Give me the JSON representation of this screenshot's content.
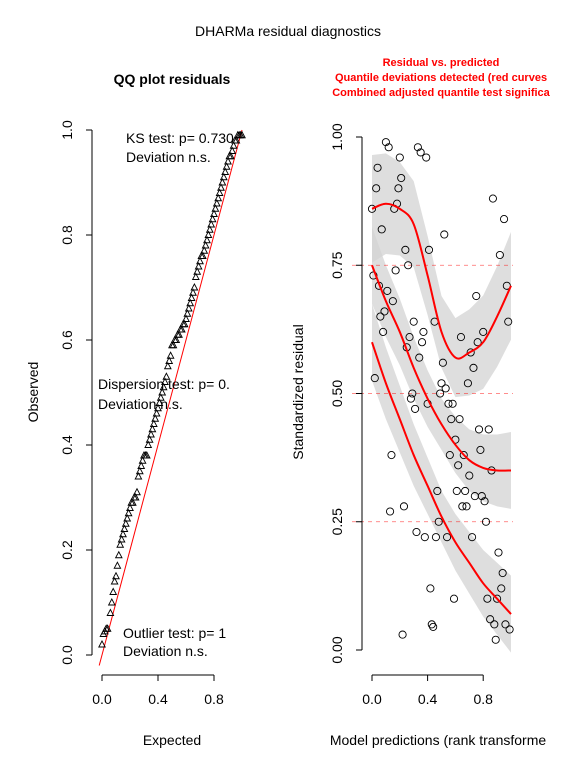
{
  "main_title": "DHARMa residual diagnostics",
  "chart_data": [
    {
      "type": "scatter",
      "title": "QQ plot residuals",
      "xlabel": "Expected",
      "ylabel": "Observed",
      "xlim": [
        0,
        1
      ],
      "ylim": [
        0,
        1
      ],
      "xticks": [
        "0.0",
        "0.4",
        "0.8"
      ],
      "yticks": [
        "0.0",
        "0.2",
        "0.4",
        "0.6",
        "0.8",
        "1.0"
      ],
      "reference_line": "y = x",
      "marker": "triangle",
      "annotations": {
        "ks_test": "KS test: p= 0.730",
        "ks_dev": "Deviation  n.s.",
        "disp_test": "Dispersion test: p= 0.",
        "disp_dev": "Deviation  n.s.",
        "outlier_test": "Outlier test: p= 1",
        "outlier_dev": "Deviation  n.s."
      },
      "points": [
        [
          0.0,
          0.02
        ],
        [
          0.01,
          0.04
        ],
        [
          0.02,
          0.045
        ],
        [
          0.03,
          0.05
        ],
        [
          0.04,
          0.05
        ],
        [
          0.06,
          0.08
        ],
        [
          0.07,
          0.1
        ],
        [
          0.08,
          0.12
        ],
        [
          0.09,
          0.14
        ],
        [
          0.1,
          0.15
        ],
        [
          0.11,
          0.17
        ],
        [
          0.12,
          0.19
        ],
        [
          0.13,
          0.21
        ],
        [
          0.14,
          0.22
        ],
        [
          0.15,
          0.23
        ],
        [
          0.16,
          0.24
        ],
        [
          0.17,
          0.25
        ],
        [
          0.18,
          0.26
        ],
        [
          0.19,
          0.27
        ],
        [
          0.2,
          0.28
        ],
        [
          0.21,
          0.29
        ],
        [
          0.22,
          0.29
        ],
        [
          0.23,
          0.3
        ],
        [
          0.24,
          0.3
        ],
        [
          0.25,
          0.31
        ],
        [
          0.26,
          0.34
        ],
        [
          0.27,
          0.35
        ],
        [
          0.28,
          0.36
        ],
        [
          0.29,
          0.37
        ],
        [
          0.3,
          0.38
        ],
        [
          0.31,
          0.38
        ],
        [
          0.32,
          0.38
        ],
        [
          0.33,
          0.4
        ],
        [
          0.34,
          0.41
        ],
        [
          0.35,
          0.42
        ],
        [
          0.36,
          0.43
        ],
        [
          0.37,
          0.44
        ],
        [
          0.38,
          0.45
        ],
        [
          0.39,
          0.46
        ],
        [
          0.4,
          0.47
        ],
        [
          0.41,
          0.48
        ],
        [
          0.42,
          0.49
        ],
        [
          0.43,
          0.5
        ],
        [
          0.44,
          0.51
        ],
        [
          0.45,
          0.52
        ],
        [
          0.46,
          0.53
        ],
        [
          0.47,
          0.55
        ],
        [
          0.48,
          0.56
        ],
        [
          0.49,
          0.57
        ],
        [
          0.5,
          0.59
        ],
        [
          0.51,
          0.59
        ],
        [
          0.52,
          0.6
        ],
        [
          0.53,
          0.6
        ],
        [
          0.54,
          0.61
        ],
        [
          0.55,
          0.61
        ],
        [
          0.56,
          0.62
        ],
        [
          0.57,
          0.62
        ],
        [
          0.58,
          0.63
        ],
        [
          0.59,
          0.63
        ],
        [
          0.6,
          0.64
        ],
        [
          0.61,
          0.65
        ],
        [
          0.62,
          0.66
        ],
        [
          0.63,
          0.67
        ],
        [
          0.64,
          0.68
        ],
        [
          0.65,
          0.69
        ],
        [
          0.66,
          0.7
        ],
        [
          0.67,
          0.72
        ],
        [
          0.68,
          0.73
        ],
        [
          0.69,
          0.74
        ],
        [
          0.7,
          0.75
        ],
        [
          0.71,
          0.76
        ],
        [
          0.72,
          0.76
        ],
        [
          0.73,
          0.77
        ],
        [
          0.74,
          0.78
        ],
        [
          0.75,
          0.79
        ],
        [
          0.76,
          0.8
        ],
        [
          0.77,
          0.81
        ],
        [
          0.78,
          0.82
        ],
        [
          0.79,
          0.83
        ],
        [
          0.8,
          0.84
        ],
        [
          0.81,
          0.85
        ],
        [
          0.82,
          0.86
        ],
        [
          0.83,
          0.87
        ],
        [
          0.84,
          0.88
        ],
        [
          0.85,
          0.89
        ],
        [
          0.86,
          0.9
        ],
        [
          0.87,
          0.91
        ],
        [
          0.88,
          0.92
        ],
        [
          0.89,
          0.93
        ],
        [
          0.9,
          0.94
        ],
        [
          0.91,
          0.95
        ],
        [
          0.92,
          0.95
        ],
        [
          0.93,
          0.96
        ],
        [
          0.94,
          0.97
        ],
        [
          0.95,
          0.98
        ],
        [
          0.96,
          0.98
        ],
        [
          0.97,
          0.99
        ],
        [
          0.98,
          0.99
        ],
        [
          0.99,
          0.99
        ],
        [
          1.0,
          0.99
        ]
      ]
    },
    {
      "type": "scatter",
      "title_lines": [
        "Residual vs. predicted",
        "Quantile deviations detected (red curves",
        "Combined adjusted quantile test significa"
      ],
      "xlabel": "Model predictions (rank transforme",
      "ylabel": "Standardized residual",
      "xlim": [
        0,
        1
      ],
      "ylim": [
        0,
        1
      ],
      "xticks": [
        "0.0",
        "0.4",
        "0.8"
      ],
      "yticks": [
        "0.00",
        "0.25",
        "0.50",
        "0.75",
        "1.00"
      ],
      "quantile_lines": [
        0.25,
        0.5,
        0.75
      ],
      "curves": {
        "q25": [
          [
            0,
            0.6
          ],
          [
            0.1,
            0.52
          ],
          [
            0.2,
            0.45
          ],
          [
            0.3,
            0.38
          ],
          [
            0.4,
            0.32
          ],
          [
            0.5,
            0.26
          ],
          [
            0.6,
            0.21
          ],
          [
            0.7,
            0.17
          ],
          [
            0.8,
            0.13
          ],
          [
            0.9,
            0.1
          ],
          [
            1.0,
            0.07
          ]
        ],
        "q50": [
          [
            0,
            0.75
          ],
          [
            0.1,
            0.68
          ],
          [
            0.2,
            0.62
          ],
          [
            0.3,
            0.55
          ],
          [
            0.4,
            0.49
          ],
          [
            0.5,
            0.44
          ],
          [
            0.6,
            0.4
          ],
          [
            0.7,
            0.37
          ],
          [
            0.8,
            0.355
          ],
          [
            0.9,
            0.35
          ],
          [
            1.0,
            0.35
          ]
        ],
        "q75": [
          [
            0,
            0.86
          ],
          [
            0.1,
            0.87
          ],
          [
            0.2,
            0.86
          ],
          [
            0.3,
            0.83
          ],
          [
            0.4,
            0.73
          ],
          [
            0.5,
            0.62
          ],
          [
            0.6,
            0.57
          ],
          [
            0.7,
            0.58
          ],
          [
            0.8,
            0.6
          ],
          [
            0.9,
            0.65
          ],
          [
            1.0,
            0.71
          ]
        ]
      },
      "points": [
        [
          0.0,
          0.86
        ],
        [
          0.01,
          0.73
        ],
        [
          0.02,
          0.53
        ],
        [
          0.03,
          0.9
        ],
        [
          0.04,
          0.94
        ],
        [
          0.05,
          0.71
        ],
        [
          0.06,
          0.65
        ],
        [
          0.07,
          0.82
        ],
        [
          0.08,
          0.62
        ],
        [
          0.09,
          0.66
        ],
        [
          0.1,
          0.99
        ],
        [
          0.11,
          0.7
        ],
        [
          0.12,
          0.98
        ],
        [
          0.13,
          0.27
        ],
        [
          0.14,
          0.38
        ],
        [
          0.15,
          0.68
        ],
        [
          0.16,
          0.86
        ],
        [
          0.17,
          0.74
        ],
        [
          0.18,
          0.87
        ],
        [
          0.19,
          0.9
        ],
        [
          0.2,
          0.96
        ],
        [
          0.21,
          0.92
        ],
        [
          0.22,
          0.03
        ],
        [
          0.23,
          0.28
        ],
        [
          0.24,
          0.78
        ],
        [
          0.25,
          0.59
        ],
        [
          0.26,
          0.75
        ],
        [
          0.27,
          0.61
        ],
        [
          0.28,
          0.49
        ],
        [
          0.29,
          0.5
        ],
        [
          0.3,
          0.64
        ],
        [
          0.31,
          0.47
        ],
        [
          0.32,
          0.23
        ],
        [
          0.33,
          0.98
        ],
        [
          0.34,
          0.57
        ],
        [
          0.35,
          0.97
        ],
        [
          0.36,
          0.6
        ],
        [
          0.37,
          0.62
        ],
        [
          0.38,
          0.22
        ],
        [
          0.39,
          0.96
        ],
        [
          0.4,
          0.48
        ],
        [
          0.41,
          0.78
        ],
        [
          0.42,
          0.12
        ],
        [
          0.43,
          0.05
        ],
        [
          0.44,
          0.045
        ],
        [
          0.45,
          0.64
        ],
        [
          0.46,
          0.22
        ],
        [
          0.47,
          0.31
        ],
        [
          0.48,
          0.25
        ],
        [
          0.49,
          0.5
        ],
        [
          0.5,
          0.52
        ],
        [
          0.51,
          0.56
        ],
        [
          0.52,
          0.81
        ],
        [
          0.53,
          0.51
        ],
        [
          0.54,
          0.22
        ],
        [
          0.55,
          0.48
        ],
        [
          0.56,
          0.38
        ],
        [
          0.57,
          0.45
        ],
        [
          0.58,
          0.48
        ],
        [
          0.59,
          0.1
        ],
        [
          0.6,
          0.41
        ],
        [
          0.61,
          0.31
        ],
        [
          0.62,
          0.36
        ],
        [
          0.63,
          0.45
        ],
        [
          0.64,
          0.61
        ],
        [
          0.65,
          0.28
        ],
        [
          0.66,
          0.38
        ],
        [
          0.67,
          0.31
        ],
        [
          0.68,
          0.28
        ],
        [
          0.69,
          0.52
        ],
        [
          0.7,
          0.34
        ],
        [
          0.71,
          0.58
        ],
        [
          0.72,
          0.22
        ],
        [
          0.73,
          0.55
        ],
        [
          0.74,
          0.3
        ],
        [
          0.75,
          0.69
        ],
        [
          0.76,
          0.6
        ],
        [
          0.77,
          0.43
        ],
        [
          0.78,
          0.39
        ],
        [
          0.79,
          0.3
        ],
        [
          0.8,
          0.62
        ],
        [
          0.81,
          0.29
        ],
        [
          0.82,
          0.25
        ],
        [
          0.83,
          0.1
        ],
        [
          0.84,
          0.43
        ],
        [
          0.85,
          0.06
        ],
        [
          0.86,
          0.35
        ],
        [
          0.87,
          0.88
        ],
        [
          0.88,
          0.05
        ],
        [
          0.89,
          0.02
        ],
        [
          0.9,
          0.1
        ],
        [
          0.91,
          0.19
        ],
        [
          0.92,
          0.77
        ],
        [
          0.93,
          0.12
        ],
        [
          0.94,
          0.15
        ],
        [
          0.95,
          0.84
        ],
        [
          0.96,
          0.05
        ],
        [
          0.97,
          0.71
        ],
        [
          0.98,
          0.64
        ],
        [
          0.99,
          0.04
        ]
      ]
    }
  ]
}
